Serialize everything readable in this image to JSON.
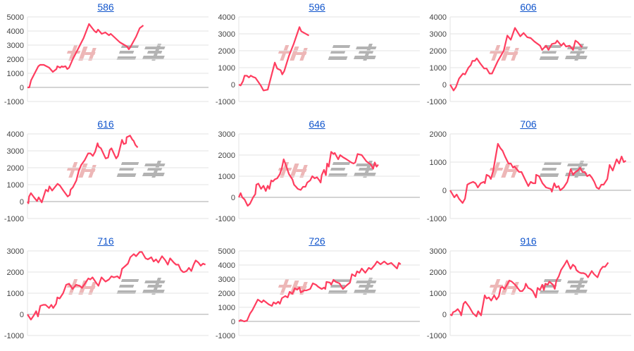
{
  "watermark": "みんレポ",
  "colors": {
    "line": "#ff3d5f",
    "grid": "#e3e3e3",
    "zero": "#a8a8a8",
    "title": "#1155cc",
    "watermark_pink": "#e8a0a0",
    "watermark_gray": "#9a9a9a"
  },
  "chart_data": [
    {
      "type": "line",
      "title": "586",
      "ylim": [
        -1000,
        5000
      ],
      "yticks": [
        "5000",
        "4000",
        "3000",
        "2000",
        "1000",
        "0",
        "-1000"
      ],
      "xlim": [
        0,
        100
      ],
      "grid": true,
      "x": [
        0,
        1,
        2,
        6,
        7,
        9,
        12,
        14,
        16,
        16.5,
        18,
        19,
        19.5,
        21,
        22,
        23,
        25,
        31,
        34,
        37,
        38,
        39,
        41,
        43,
        45,
        46,
        51,
        55,
        56,
        57,
        60,
        62,
        64
      ],
      "y": [
        0,
        0,
        500,
        1500,
        1600,
        1600,
        1400,
        1100,
        1300,
        1500,
        1400,
        1500,
        1450,
        1500,
        1300,
        1400,
        2000,
        3500,
        4500,
        4000,
        3900,
        4100,
        3800,
        3900,
        3700,
        3800,
        3200,
        2900,
        2700,
        2900,
        3600,
        4200,
        4400
      ]
    },
    {
      "type": "line",
      "title": "596",
      "ylim": [
        -1000,
        4000
      ],
      "yticks": [
        "4000",
        "3000",
        "2000",
        "1000",
        "0",
        "-1000"
      ],
      "xlim": [
        0,
        100
      ],
      "grid": true,
      "x": [
        0,
        1,
        2.3,
        3.2,
        4.5,
        5.6,
        6.6,
        7.9,
        9.2,
        10.8,
        12.1,
        13.6,
        16,
        19.9,
        21.2,
        23.1,
        24,
        25.1,
        27.7,
        30.3,
        33.5,
        34.5,
        38.7
      ],
      "y": [
        0,
        -50,
        200,
        530,
        520,
        420,
        530,
        450,
        400,
        150,
        -50,
        -350,
        -300,
        1300,
        950,
        850,
        600,
        800,
        1700,
        2400,
        3400,
        3150,
        2900
      ]
    },
    {
      "type": "line",
      "title": "606",
      "ylim": [
        -1000,
        4000
      ],
      "yticks": [
        "4000",
        "3000",
        "2000",
        "1000",
        "0",
        "-1000"
      ],
      "xlim": [
        0,
        100
      ],
      "grid": true,
      "x": [
        0,
        1.9,
        3.2,
        4.9,
        7.1,
        8.2,
        10.1,
        11.4,
        12.3,
        13.6,
        14.7,
        16.6,
        18.8,
        20.1,
        21.8,
        23.1,
        26.4,
        29.6,
        31.6,
        33.5,
        35.8,
        38.7,
        40.6,
        42.6,
        44.5,
        46.5,
        49.7,
        50.8,
        53,
        54.3,
        56.2,
        58.2,
        59.1,
        61.4,
        62.7,
        64,
        66,
        67.9,
        69.2,
        70.5,
        72.9
      ],
      "y": [
        0,
        -350,
        -150,
        350,
        650,
        600,
        1000,
        1150,
        1400,
        1400,
        1550,
        1250,
        950,
        950,
        650,
        650,
        1400,
        2000,
        2900,
        2650,
        3350,
        2850,
        3050,
        2800,
        2750,
        2550,
        2300,
        2050,
        2300,
        2050,
        2400,
        2450,
        2600,
        2300,
        2450,
        2250,
        2300,
        2050,
        2600,
        2500,
        2200
      ]
    },
    {
      "type": "line",
      "title": "616",
      "ylim": [
        -1000,
        4000
      ],
      "yticks": [
        "4000",
        "3000",
        "2000",
        "1000",
        "0",
        "-1000"
      ],
      "xlim": [
        0,
        100
      ],
      "grid": true,
      "x": [
        0,
        0.5,
        0.9,
        1.9,
        3.6,
        5.3,
        6.2,
        7.9,
        10.1,
        11.4,
        12.1,
        13.6,
        16.6,
        17.9,
        19.8,
        22.2,
        23.4,
        23.8,
        25.1,
        27,
        28.3,
        29.6,
        31.6,
        33.5,
        34.8,
        36.1,
        37.4,
        38.7,
        39.3,
        40.6,
        43.2,
        44.5,
        45.5,
        46.4,
        49,
        50,
        52.2,
        53.2,
        54.4,
        54.8,
        56.7,
        58,
        58.6,
        59.6,
        60.9
      ],
      "y": [
        0,
        -100,
        300,
        500,
        250,
        30,
        250,
        -50,
        700,
        600,
        900,
        650,
        1050,
        950,
        650,
        300,
        400,
        700,
        850,
        1250,
        1800,
        2150,
        2450,
        2850,
        2850,
        2700,
        2950,
        3450,
        3250,
        3150,
        2550,
        2600,
        3050,
        3150,
        2550,
        2700,
        3650,
        3400,
        3450,
        3800,
        3900,
        3650,
        3600,
        3350,
        3200
      ]
    },
    {
      "type": "line",
      "title": "646",
      "ylim": [
        -1000,
        3000
      ],
      "yticks": [
        "3000",
        "2000",
        "1000",
        "0",
        "-1000"
      ],
      "xlim": [
        0,
        100
      ],
      "grid": true,
      "x": [
        0,
        1,
        1.9,
        3.2,
        4.9,
        6.2,
        7.9,
        9.1,
        9.7,
        10.8,
        12.3,
        13.6,
        14.9,
        16,
        16.9,
        17.9,
        18.8,
        19.9,
        21.2,
        22.7,
        23.8,
        24.8,
        26.1,
        27.7,
        29.6,
        30.5,
        31.6,
        32.6,
        34.2,
        35.5,
        36.8,
        37.8,
        39.4,
        40.6,
        41.9,
        43.2,
        44.5,
        45.2,
        45.8,
        47.1,
        48.1,
        48.8,
        49.7,
        51,
        52.3,
        53,
        54.9,
        56,
        57.5,
        59.5,
        62.1,
        63.4,
        64.3,
        65.6,
        67.9,
        70.5,
        72.9,
        74.2,
        75.1,
        76.1,
        77
      ],
      "y": [
        0,
        200,
        0,
        -100,
        -400,
        -300,
        0,
        150,
        600,
        650,
        400,
        550,
        300,
        550,
        400,
        800,
        750,
        850,
        900,
        1100,
        1400,
        1800,
        1500,
        1100,
        850,
        600,
        500,
        400,
        350,
        500,
        500,
        700,
        800,
        1000,
        900,
        950,
        800,
        700,
        1050,
        1300,
        1050,
        1600,
        1450,
        2150,
        2050,
        2100,
        1800,
        2000,
        1900,
        1800,
        1650,
        1600,
        1650,
        2050,
        2000,
        1700,
        1550,
        1350,
        1650,
        1450,
        1550
      ]
    },
    {
      "type": "line",
      "title": "706",
      "ylim": [
        -1000,
        2000
      ],
      "yticks": [
        "2000",
        "1000",
        "0",
        "-1000"
      ],
      "xlim": [
        0,
        100
      ],
      "grid": true,
      "x": [
        0,
        2.3,
        3.6,
        4.9,
        6.9,
        8.2,
        9.5,
        10.8,
        12.7,
        14,
        15.3,
        16.9,
        18.6,
        19.2,
        20.1,
        21.6,
        22.5,
        23.8,
        26.4,
        27.7,
        29,
        30.3,
        32.2,
        33.5,
        34.8,
        35.5,
        38.1,
        39.4,
        41.3,
        43.2,
        44.5,
        45.8,
        47.1,
        47.5,
        49.1,
        51,
        53,
        55.6,
        56.2,
        57.5,
        58.6,
        59.9,
        60.8,
        62.7,
        64.7,
        66.6,
        67.9,
        69.2,
        70.5,
        71.8,
        73.1,
        74.4,
        75.7,
        77,
        78.3,
        79.6,
        80.9,
        82.2,
        83.5,
        84.8,
        86.8,
        88.1,
        89.8,
        92,
        93.4,
        94.7,
        95.9,
        97.1
      ],
      "y": [
        0,
        -250,
        -150,
        -300,
        -450,
        -300,
        200,
        250,
        300,
        250,
        100,
        250,
        300,
        250,
        550,
        500,
        400,
        700,
        1650,
        1500,
        1400,
        1200,
        950,
        950,
        800,
        850,
        650,
        650,
        400,
        150,
        300,
        250,
        250,
        550,
        500,
        250,
        100,
        50,
        -50,
        250,
        100,
        150,
        0,
        100,
        300,
        750,
        550,
        650,
        700,
        800,
        650,
        650,
        500,
        550,
        450,
        300,
        100,
        50,
        200,
        200,
        400,
        900,
        700,
        1100,
        950,
        1200,
        1000,
        1050
      ]
    },
    {
      "type": "line",
      "title": "716",
      "ylim": [
        -1000,
        3000
      ],
      "yticks": [
        "3000",
        "2000",
        "1000",
        "0",
        "-1000"
      ],
      "xlim": [
        0,
        100
      ],
      "grid": true,
      "x": [
        0,
        1.9,
        3.5,
        4.8,
        5.8,
        7.1,
        8.7,
        10,
        11.9,
        13.2,
        14.2,
        15.8,
        16.5,
        17.8,
        19.7,
        21.4,
        23,
        24.9,
        26.9,
        28.8,
        30.1,
        32.1,
        33.6,
        34.7,
        35.9,
        37.9,
        39.2,
        40.9,
        43.1,
        45,
        46.4,
        47.7,
        49.6,
        50.9,
        51.6,
        52.2,
        54.2,
        55.5,
        56.8,
        58.7,
        60,
        62,
        63.2,
        65.2,
        66.5,
        68.4,
        69.7,
        71,
        72.3,
        74.3,
        76.2,
        77.5,
        78.8,
        80.8,
        82.1,
        83.4,
        84.7,
        86,
        86.6,
        87.9,
        89.2,
        90.5,
        91.8,
        92.9,
        94.4,
        95.7,
        97,
        98.3
      ],
      "y": [
        0,
        -250,
        -50,
        150,
        -100,
        400,
        450,
        450,
        300,
        450,
        300,
        500,
        800,
        750,
        1000,
        1400,
        1450,
        1200,
        1400,
        1350,
        1250,
        1500,
        1700,
        1650,
        1750,
        1500,
        1350,
        1750,
        1550,
        1650,
        1800,
        1750,
        1800,
        1700,
        1900,
        2150,
        2300,
        2400,
        2700,
        2850,
        2750,
        2950,
        2950,
        2650,
        2600,
        2700,
        2500,
        2600,
        2450,
        2750,
        2550,
        2350,
        2650,
        2450,
        2350,
        2350,
        2100,
        2000,
        2000,
        2050,
        2200,
        2050,
        2350,
        2550,
        2450,
        2300,
        2400,
        2350
      ]
    },
    {
      "type": "line",
      "title": "726",
      "ylim": [
        -1000,
        5000
      ],
      "yticks": [
        "5000",
        "4000",
        "3000",
        "2000",
        "1000",
        "0",
        "-1000"
      ],
      "xlim": [
        0,
        100
      ],
      "grid": true,
      "x": [
        0,
        1,
        2.9,
        4.5,
        6.2,
        7.5,
        10.5,
        12.7,
        13.6,
        16.6,
        18.3,
        19.2,
        20.5,
        21.8,
        22.7,
        23.8,
        25.7,
        27,
        28.1,
        29.6,
        30.9,
        32.2,
        33.5,
        34.2,
        36.1,
        37.4,
        39.4,
        40.9,
        42.6,
        43.9,
        45.8,
        47.1,
        47.8,
        48.4,
        50.4,
        51,
        52.3,
        53.6,
        55.6,
        57.5,
        59.5,
        61.4,
        62.5,
        64.3,
        65.3,
        66.6,
        67.9,
        69.9,
        71.8,
        73.1,
        75.1,
        76.4,
        78.3,
        80.3,
        82.2,
        84.2,
        87.4,
        88.4,
        89.4
      ],
      "y": [
        0,
        100,
        0,
        50,
        550,
        800,
        1550,
        1350,
        1500,
        1200,
        1100,
        1350,
        1250,
        1400,
        1250,
        1650,
        1800,
        1700,
        2100,
        1950,
        2350,
        2250,
        2400,
        2050,
        2200,
        2200,
        2300,
        2700,
        2600,
        2450,
        2300,
        2400,
        2300,
        2800,
        2750,
        2600,
        2950,
        2800,
        2700,
        2300,
        2550,
        2750,
        3350,
        3200,
        3550,
        3450,
        3750,
        3450,
        3800,
        3700,
        4000,
        4250,
        4050,
        4250,
        4050,
        4150,
        3750,
        4150,
        4050
      ]
    },
    {
      "type": "line",
      "title": "916",
      "ylim": [
        -1000,
        3000
      ],
      "yticks": [
        "3000",
        "2000",
        "1000",
        "0",
        "-1000"
      ],
      "xlim": [
        0,
        100
      ],
      "grid": true,
      "x": [
        0,
        0.9,
        1.6,
        2.9,
        4.2,
        5.5,
        6.1,
        7.4,
        8.4,
        10.6,
        12.6,
        14.5,
        15.5,
        17.1,
        19.1,
        20.1,
        21.4,
        22.7,
        24.3,
        25.6,
        26.9,
        27.9,
        28.8,
        30.1,
        32.7,
        34,
        35.9,
        38.6,
        39.9,
        41.2,
        41.8,
        43.1,
        44.4,
        45.7,
        47.4,
        48.3,
        49.6,
        50.9,
        51.8,
        52.6,
        53.9,
        54.8,
        56.8,
        57.8,
        58.7,
        60,
        61.3,
        63.2,
        64.5,
        66.5,
        67.8,
        69.1,
        69.7,
        71,
        72.3,
        73.6,
        74.9,
        76.2,
        78.2,
        79.5,
        81.4,
        83,
        84.3,
        85.6,
        87.3
      ],
      "y": [
        0,
        -50,
        100,
        150,
        250,
        100,
        -50,
        500,
        600,
        350,
        50,
        -100,
        150,
        -50,
        900,
        750,
        800,
        650,
        900,
        700,
        850,
        1250,
        1300,
        1200,
        1600,
        1550,
        1400,
        1100,
        1100,
        1250,
        1450,
        1250,
        1200,
        1100,
        800,
        1250,
        1150,
        1400,
        1150,
        1450,
        1400,
        1550,
        1400,
        1200,
        1600,
        1800,
        2100,
        2350,
        2550,
        2150,
        2350,
        2250,
        2100,
        2000,
        1950,
        1950,
        1900,
        1750,
        2050,
        1900,
        1750,
        2100,
        2250,
        2250,
        2450
      ]
    }
  ]
}
